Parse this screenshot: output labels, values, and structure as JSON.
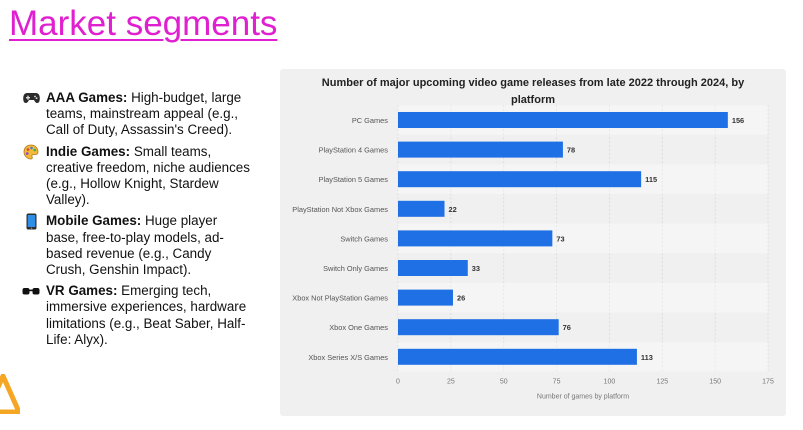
{
  "slide": {
    "title": "Market segments"
  },
  "bullets": [
    {
      "icon": "game-controller-icon",
      "name": "AAA Games:",
      "desc": " High-budget, large teams, mainstream appeal (e.g., Call of Duty, Assassin's Creed)."
    },
    {
      "icon": "paint-palette-icon",
      "name": "Indie Games:",
      "desc": " Small teams, creative freedom, niche audiences (e.g., Hollow Knight, Stardew Valley)."
    },
    {
      "icon": "mobile-phone-icon",
      "name": "Mobile Games:",
      "desc": " Huge player base, free-to-play models, ad-based revenue (e.g., Candy Crush, Genshin Impact)."
    },
    {
      "icon": "vr-goggles-icon",
      "name": "VR Games:",
      "desc": " Emerging tech, immersive experiences, hardware limitations (e.g., Beat Saber, Half-Life: Alyx)."
    }
  ],
  "colors": {
    "title": "#e020d0",
    "bar": "#1f6fe5",
    "panel": "#f0f0f0",
    "warning": "#f5a623"
  },
  "chart_data": {
    "type": "bar",
    "orientation": "horizontal",
    "title_line1": "Number of major upcoming video game releases from late 2022 through 2024, by",
    "title_line2": "platform",
    "xlabel": "Number of games by platform",
    "ylabel": "",
    "categories": [
      "PC Games",
      "PlayStation 4 Games",
      "PlayStation 5 Games",
      "PlayStation Not Xbox Games",
      "Switch Games",
      "Switch Only Games",
      "Xbox Not PlayStation Games",
      "Xbox One Games",
      "Xbox Series X/S Games"
    ],
    "values": [
      156,
      78,
      115,
      22,
      73,
      33,
      26,
      76,
      113
    ],
    "xlim": [
      0,
      175
    ],
    "xticks": [
      0,
      25,
      50,
      75,
      100,
      125,
      150,
      175
    ],
    "grid": true,
    "data_labels": true
  }
}
